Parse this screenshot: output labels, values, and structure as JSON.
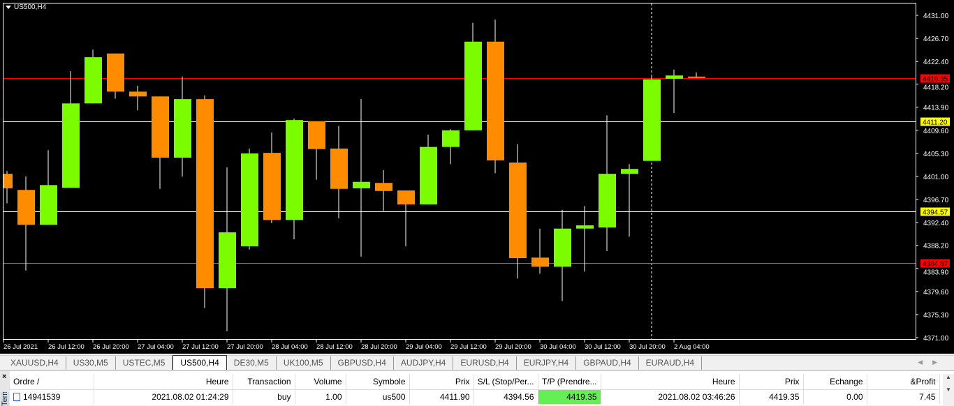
{
  "chart": {
    "title": "US500,H4"
  },
  "chart_data": {
    "type": "candlestick",
    "symbol": "US500",
    "timeframe": "H4",
    "ylim": [
      4371.0,
      4431.0
    ],
    "y_ticks": [
      "4431.00",
      "4426.70",
      "4422.40",
      "4418.20",
      "4413.90",
      "4409.60",
      "4405.30",
      "4401.00",
      "4396.70",
      "4392.40",
      "4388.20",
      "4383.90",
      "4379.60",
      "4375.30",
      "4371.00"
    ],
    "x_ticks": [
      "26 Jul 2021",
      "26 Jul 12:00",
      "26 Jul 20:00",
      "27 Jul 04:00",
      "27 Jul 12:00",
      "27 Jul 20:00",
      "28 Jul 04:00",
      "28 Jul 12:00",
      "28 Jul 20:00",
      "29 Jul 04:00",
      "29 Jul 12:00",
      "29 Jul 20:00",
      "30 Jul 04:00",
      "30 Jul 12:00",
      "30 Jul 20:00",
      "2 Aug 04:00"
    ],
    "ohlc": [
      [
        4401.5,
        4402.0,
        4396.0,
        4398.8
      ],
      [
        4398.5,
        4401.0,
        4383.5,
        4392.0
      ],
      [
        4392.0,
        4405.9,
        4392.0,
        4399.4
      ],
      [
        4398.9,
        4420.6,
        4398.9,
        4414.6
      ],
      [
        4414.6,
        4424.6,
        4414.6,
        4423.2
      ],
      [
        4423.9,
        4423.9,
        4415.5,
        4416.8
      ],
      [
        4416.8,
        4417.9,
        4413.3,
        4415.9
      ],
      [
        4415.9,
        4415.9,
        4398.7,
        4404.5
      ],
      [
        4404.5,
        4419.6,
        4401.0,
        4415.4
      ],
      [
        4415.4,
        4416.1,
        4376.5,
        4380.2
      ],
      [
        4380.2,
        4402.7,
        4372.2,
        4390.6
      ],
      [
        4388.0,
        4406.2,
        4387.4,
        4405.3
      ],
      [
        4405.4,
        4409.2,
        4392.3,
        4392.9
      ],
      [
        4392.9,
        4411.8,
        4389.3,
        4411.5
      ],
      [
        4411.3,
        4411.3,
        4400.4,
        4406.1
      ],
      [
        4406.2,
        4410.4,
        4393.2,
        4398.7
      ],
      [
        4398.8,
        4415.4,
        4386.1,
        4400.0
      ],
      [
        4399.8,
        4402.2,
        4394.6,
        4398.3
      ],
      [
        4398.4,
        4398.4,
        4388.0,
        4395.8
      ],
      [
        4395.8,
        4408.8,
        4395.8,
        4406.5
      ],
      [
        4406.5,
        4409.8,
        4403.3,
        4409.6
      ],
      [
        4409.6,
        4429.6,
        4409.6,
        4426.1
      ],
      [
        4426.1,
        4430.2,
        4401.6,
        4404.0
      ],
      [
        4403.6,
        4407.0,
        4382.0,
        4385.8
      ],
      [
        4385.9,
        4391.3,
        4382.9,
        4384.2
      ],
      [
        4384.2,
        4394.8,
        4377.8,
        4391.3
      ],
      [
        4391.3,
        4395.5,
        4383.3,
        4391.9
      ],
      [
        4391.5,
        4412.4,
        4387.1,
        4401.5
      ],
      [
        4401.5,
        4403.3,
        4389.8,
        4402.4
      ],
      [
        4403.9,
        4419.6,
        4403.9,
        4419.1
      ],
      [
        4419.2,
        4420.9,
        4412.8,
        4419.8
      ],
      [
        4419.6,
        4420.4,
        4419.3,
        4419.35
      ]
    ],
    "levels": [
      {
        "value": "4419.35",
        "line": "#ff0000",
        "label_bg": "#ff0000"
      },
      {
        "value": "4411.20",
        "line": "#ffffff",
        "label_bg": "#ffff00"
      },
      {
        "value": "4394.57",
        "line": "#ffffff",
        "label_bg": "#ffff00"
      },
      {
        "value": "4384.87",
        "line": "#777777",
        "label_bg": "#ff0000"
      }
    ],
    "colors": {
      "bull": "#7cfc00",
      "bear": "#ff8c00",
      "background": "#000000"
    }
  },
  "tabs": [
    "XAUUSD,H4",
    "US30,M5",
    "USTEC,M5",
    "US500,H4",
    "DE30,M5",
    "UK100,M5",
    "GBPUSD,H4",
    "AUDJPY,H4",
    "EURUSD,H4",
    "EURJPY,H4",
    "GBPAUD,H4",
    "EURAUD,H4"
  ],
  "active_tab": "US500,H4",
  "terminal": {
    "side_label": "Terminal",
    "columns": [
      "Ordre  /",
      "Heure",
      "Transaction",
      "Volume",
      "Symbole",
      "Prix",
      "S/L (Stop/Per...",
      "T/P (Prendre...",
      "Heure",
      "Prix",
      "Echange",
      "&Profit"
    ],
    "rows": [
      [
        "14941539",
        "2021.08.02 01:24:29",
        "buy",
        "1.00",
        "us500",
        "4411.90",
        "4394.56",
        "4419.35",
        "2021.08.02 03:46:26",
        "4419.35",
        "0.00",
        "7.45"
      ]
    ]
  }
}
